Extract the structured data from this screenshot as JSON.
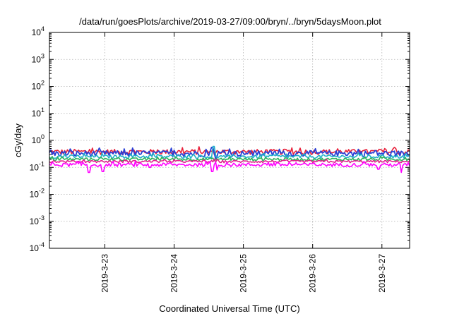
{
  "chart_data": {
    "type": "line",
    "title": "/data/run/goesPlots/archive/2019-03-27/09:00/bryn/../bryn/5daysMoon.plot",
    "xlabel": "Coordinated Universal Time (UTC)",
    "ylabel": "cGy/day",
    "yscale": "log",
    "ylim": [
      0.0001,
      10000
    ],
    "y_ticks": [
      {
        "value": 0.0001,
        "base": "10",
        "exp": "-4"
      },
      {
        "value": 0.001,
        "base": "10",
        "exp": "-3"
      },
      {
        "value": 0.01,
        "base": "10",
        "exp": "-2"
      },
      {
        "value": 0.1,
        "base": "10",
        "exp": "-1"
      },
      {
        "value": 1,
        "base": "10",
        "exp": "0"
      },
      {
        "value": 10,
        "base": "10",
        "exp": "1"
      },
      {
        "value": 100,
        "base": "10",
        "exp": "2"
      },
      {
        "value": 1000,
        "base": "10",
        "exp": "3"
      },
      {
        "value": 10000,
        "base": "10",
        "exp": "4"
      }
    ],
    "xlim": [
      2.2,
      7.4
    ],
    "x_ticks": [
      {
        "value": 3,
        "label": "2019-3-23"
      },
      {
        "value": 4,
        "label": "2019-3-24"
      },
      {
        "value": 5,
        "label": "2019-3-25"
      },
      {
        "value": 6,
        "label": "2019-3-26"
      },
      {
        "value": 7,
        "label": "2019-3-27"
      }
    ],
    "grid": true,
    "series": [
      {
        "color": "#e8203a",
        "base": 0.38,
        "noise": 0.22,
        "dips": []
      },
      {
        "color": "#2a3fd6",
        "base": 0.33,
        "noise": 0.25,
        "dips": [
          {
            "x": 4.55,
            "v": 0.55
          },
          {
            "x": 4.6,
            "v": 0.2
          }
        ]
      },
      {
        "color": "#1fb0c8",
        "base": 0.25,
        "noise": 0.15,
        "dips": [
          {
            "x": 4.57,
            "v": 0.6
          }
        ]
      },
      {
        "color": "#2db35a",
        "base": 0.2,
        "noise": 0.12,
        "dips": []
      },
      {
        "color": "#e0208c",
        "base": 0.165,
        "noise": 0.1,
        "dips": []
      },
      {
        "color": "#ff00ff",
        "base": 0.125,
        "noise": 0.15,
        "dips": [
          {
            "x": 2.77,
            "v": 0.065
          },
          {
            "x": 2.97,
            "v": 0.07
          },
          {
            "x": 3.65,
            "v": 0.1
          },
          {
            "x": 4.55,
            "v": 0.07
          },
          {
            "x": 4.62,
            "v": 0.08
          },
          {
            "x": 6.95,
            "v": 0.085
          },
          {
            "x": 7.28,
            "v": 0.065
          }
        ]
      }
    ]
  }
}
